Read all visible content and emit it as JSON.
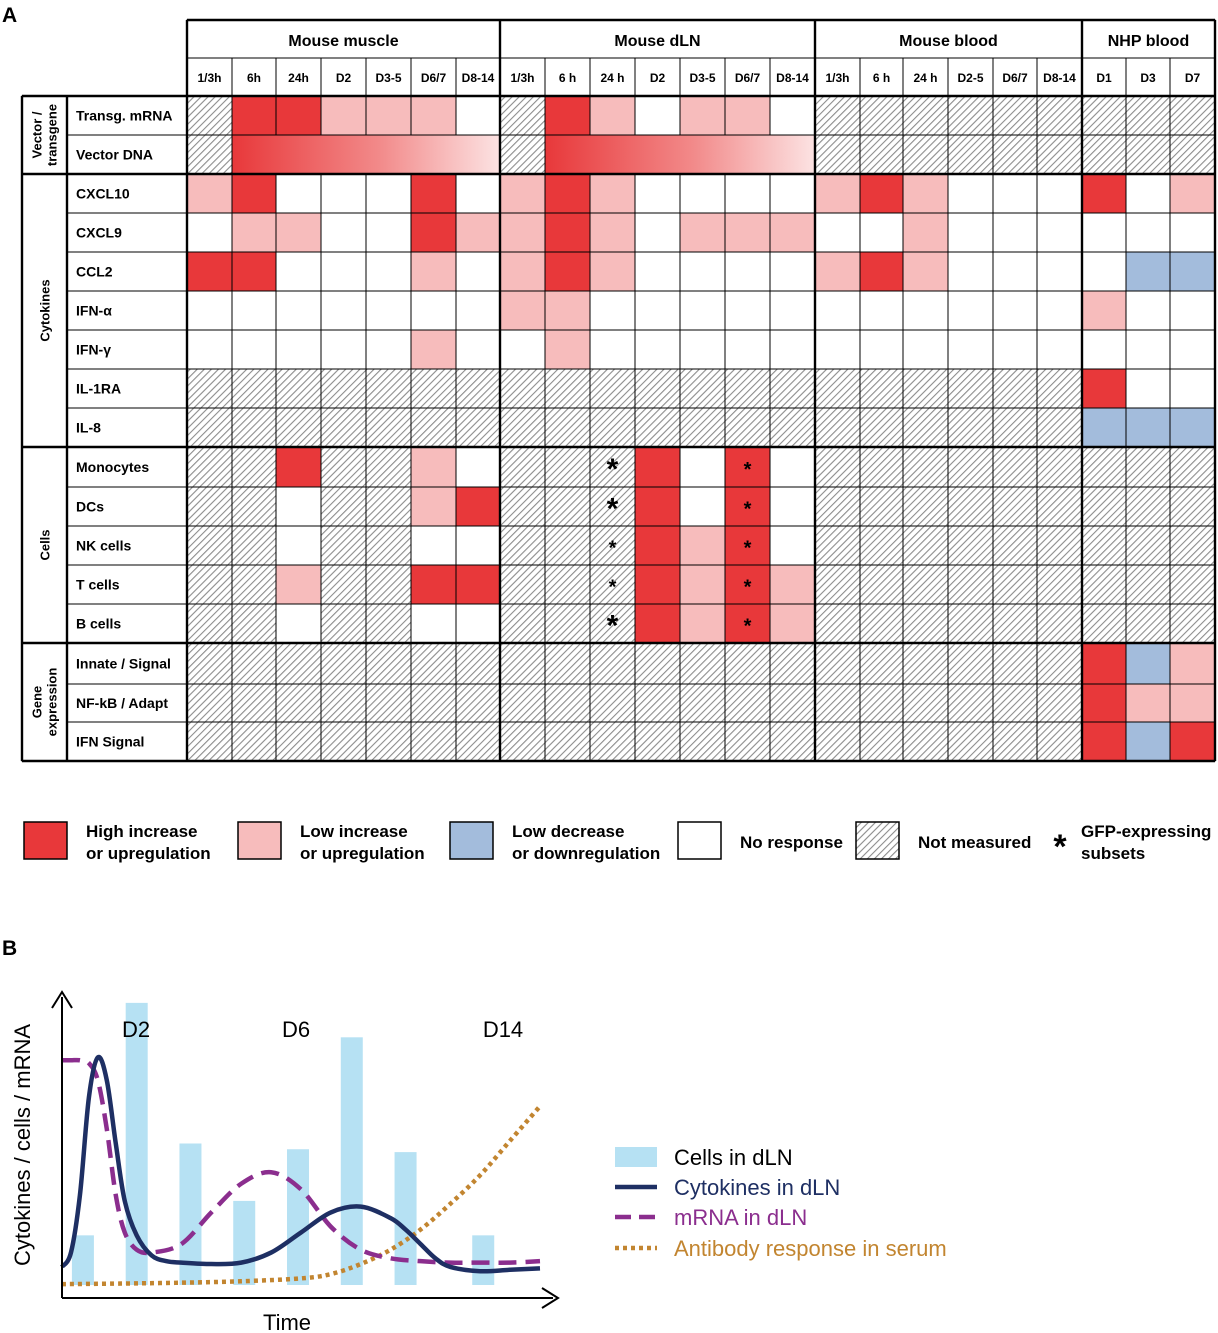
{
  "panel_a": {
    "label": "A",
    "groups": [
      {
        "name": "Mouse muscle",
        "cols": [
          "1/3h",
          "6h",
          "24h",
          "D2",
          "D3-5",
          "D6/7",
          "D8-14"
        ]
      },
      {
        "name": "Mouse dLN",
        "cols": [
          "1/3h",
          "6 h",
          "24 h",
          "D2",
          "D3-5",
          "D6/7",
          "D8-14"
        ]
      },
      {
        "name": "Mouse blood",
        "cols": [
          "1/3h",
          "6 h",
          "24 h",
          "D2-5",
          "D6/7",
          "D8-14"
        ]
      },
      {
        "name": "NHP blood",
        "cols": [
          "D1",
          "D3",
          "D7"
        ]
      }
    ],
    "sections": [
      {
        "name": [
          "Vector /",
          "transgene"
        ],
        "rows": [
          "Transg. mRNA",
          "Vector DNA"
        ]
      },
      {
        "name": [
          "Cytokines"
        ],
        "rows": [
          "CXCL10",
          "CXCL9",
          "CCL2",
          "IFN-α",
          "IFN-γ",
          "IL-1RA",
          "IL-8"
        ]
      },
      {
        "name": [
          "Cells"
        ],
        "rows": [
          "Monocytes",
          "DCs",
          "NK cells",
          "T cells",
          "B cells"
        ]
      },
      {
        "name": [
          "Gene",
          "expression"
        ],
        "rows": [
          "Innate / Signal",
          "NF-kB / Adapt",
          "IFN Signal"
        ]
      }
    ],
    "colors": {
      "H": "#e8383a",
      "L": "#f7bcbc",
      "D": "#a3bcdc",
      "N": "#ffffff"
    },
    "cells": [
      [
        "X",
        "H",
        "H",
        "L",
        "L",
        "L",
        "N",
        "X",
        "H",
        "L",
        "N",
        "L",
        "L",
        "N",
        "X",
        "X",
        "X",
        "X",
        "X",
        "X",
        "X",
        "X",
        "X"
      ],
      [
        "X",
        "G",
        "G",
        "G",
        "G",
        "G",
        "G",
        "X",
        "G",
        "G",
        "G",
        "G",
        "G",
        "G",
        "X",
        "X",
        "X",
        "X",
        "X",
        "X",
        "X",
        "X",
        "X"
      ],
      [
        "L",
        "H",
        "N",
        "N",
        "N",
        "H",
        "N",
        "L",
        "H",
        "L",
        "N",
        "N",
        "N",
        "N",
        "L",
        "H",
        "L",
        "N",
        "N",
        "N",
        "H",
        "N",
        "L"
      ],
      [
        "N",
        "L",
        "L",
        "N",
        "N",
        "H",
        "L",
        "L",
        "H",
        "L",
        "N",
        "L",
        "L",
        "L",
        "N",
        "N",
        "L",
        "N",
        "N",
        "N",
        "N",
        "N",
        "N"
      ],
      [
        "H",
        "H",
        "N",
        "N",
        "N",
        "L",
        "N",
        "L",
        "H",
        "L",
        "N",
        "N",
        "N",
        "N",
        "L",
        "H",
        "L",
        "N",
        "N",
        "N",
        "N",
        "D",
        "D"
      ],
      [
        "N",
        "N",
        "N",
        "N",
        "N",
        "N",
        "N",
        "L",
        "L",
        "N",
        "N",
        "N",
        "N",
        "N",
        "N",
        "N",
        "N",
        "N",
        "N",
        "N",
        "L",
        "N",
        "N"
      ],
      [
        "N",
        "N",
        "N",
        "N",
        "N",
        "L",
        "N",
        "N",
        "L",
        "N",
        "N",
        "N",
        "N",
        "N",
        "N",
        "N",
        "N",
        "N",
        "N",
        "N",
        "N",
        "N",
        "N"
      ],
      [
        "X",
        "X",
        "X",
        "X",
        "X",
        "X",
        "X",
        "X",
        "X",
        "X",
        "X",
        "X",
        "X",
        "X",
        "X",
        "X",
        "X",
        "X",
        "X",
        "X",
        "H",
        "N",
        "N"
      ],
      [
        "X",
        "X",
        "X",
        "X",
        "X",
        "X",
        "X",
        "X",
        "X",
        "X",
        "X",
        "X",
        "X",
        "X",
        "X",
        "X",
        "X",
        "X",
        "X",
        "X",
        "D",
        "D",
        "D"
      ],
      [
        "X",
        "X",
        "H",
        "X",
        "X",
        "L",
        "N",
        "X",
        "X",
        "X",
        "H",
        "N",
        "H",
        "N",
        "X",
        "X",
        "X",
        "X",
        "X",
        "X",
        "X",
        "X",
        "X"
      ],
      [
        "X",
        "X",
        "N",
        "X",
        "X",
        "L",
        "H",
        "X",
        "X",
        "X",
        "H",
        "N",
        "H",
        "N",
        "X",
        "X",
        "X",
        "X",
        "X",
        "X",
        "X",
        "X",
        "X"
      ],
      [
        "X",
        "X",
        "N",
        "X",
        "X",
        "N",
        "N",
        "X",
        "X",
        "X",
        "H",
        "L",
        "H",
        "N",
        "X",
        "X",
        "X",
        "X",
        "X",
        "X",
        "X",
        "X",
        "X"
      ],
      [
        "X",
        "X",
        "L",
        "X",
        "X",
        "H",
        "H",
        "X",
        "X",
        "X",
        "H",
        "L",
        "H",
        "L",
        "X",
        "X",
        "X",
        "X",
        "X",
        "X",
        "X",
        "X",
        "X"
      ],
      [
        "X",
        "X",
        "N",
        "X",
        "X",
        "N",
        "N",
        "X",
        "X",
        "X",
        "H",
        "L",
        "H",
        "L",
        "X",
        "X",
        "X",
        "X",
        "X",
        "X",
        "X",
        "X",
        "X"
      ],
      [
        "X",
        "X",
        "X",
        "X",
        "X",
        "X",
        "X",
        "X",
        "X",
        "X",
        "X",
        "X",
        "X",
        "X",
        "X",
        "X",
        "X",
        "X",
        "X",
        "X",
        "H",
        "D",
        "L"
      ],
      [
        "X",
        "X",
        "X",
        "X",
        "X",
        "X",
        "X",
        "X",
        "X",
        "X",
        "X",
        "X",
        "X",
        "X",
        "X",
        "X",
        "X",
        "X",
        "X",
        "X",
        "H",
        "L",
        "L"
      ],
      [
        "X",
        "X",
        "X",
        "X",
        "X",
        "X",
        "X",
        "X",
        "X",
        "X",
        "X",
        "X",
        "X",
        "X",
        "X",
        "X",
        "X",
        "X",
        "X",
        "X",
        "H",
        "D",
        "H"
      ]
    ],
    "asterisks": [
      {
        "row": 9,
        "col": 9,
        "size": "big"
      },
      {
        "row": 9,
        "col": 12,
        "size": "small"
      },
      {
        "row": 10,
        "col": 9,
        "size": "big"
      },
      {
        "row": 10,
        "col": 12,
        "size": "small"
      },
      {
        "row": 11,
        "col": 9,
        "size": "small"
      },
      {
        "row": 11,
        "col": 12,
        "size": "small"
      },
      {
        "row": 12,
        "col": 9,
        "size": "small"
      },
      {
        "row": 12,
        "col": 12,
        "size": "small"
      },
      {
        "row": 13,
        "col": 9,
        "size": "big"
      },
      {
        "row": 13,
        "col": 12,
        "size": "small"
      }
    ],
    "legend": [
      {
        "key": "H",
        "lines": [
          "High increase",
          "or upregulation"
        ]
      },
      {
        "key": "L",
        "lines": [
          "Low increase",
          "or upregulation"
        ]
      },
      {
        "key": "D",
        "lines": [
          "Low decrease",
          "or downregulation"
        ]
      },
      {
        "key": "N",
        "lines": [
          "No response"
        ]
      },
      {
        "key": "X",
        "lines": [
          "Not measured"
        ]
      },
      {
        "key": "*",
        "lines": [
          "GFP-expressing",
          "subsets"
        ]
      }
    ]
  },
  "panel_b": {
    "label": "B",
    "chart_data": {
      "type": "line",
      "xlabel": "Time",
      "ylabel": "Cytokines / cells / mRNA",
      "day_labels": [
        "D2",
        "D6",
        "D14"
      ],
      "xlim": [
        0,
        15
      ],
      "ylim": [
        0,
        10
      ],
      "bars": {
        "name": "Cells in dLN",
        "color": "#b6e1f3",
        "x": [
          0.7,
          2.5,
          4.3,
          6.1,
          7.9,
          9.7,
          11.5,
          14.1
        ],
        "values": [
          1.8,
          9.9,
          5.0,
          3.0,
          4.8,
          8.7,
          4.7,
          1.8
        ]
      },
      "series": [
        {
          "name": "Cytokines in dLN",
          "color": "#1e2f63",
          "style": "solid",
          "x": [
            0,
            0.3,
            0.6,
            0.9,
            1.2,
            1.5,
            1.8,
            2.1,
            2.5,
            3,
            3.5,
            4,
            5,
            6,
            7,
            8,
            9,
            10,
            11,
            11.5,
            12,
            12.5,
            13,
            14,
            15,
            16
          ],
          "y": [
            0.7,
            1.2,
            3.2,
            6.6,
            8.0,
            7.2,
            5.0,
            3.0,
            1.8,
            1.1,
            0.9,
            0.85,
            0.8,
            0.85,
            1.2,
            1.9,
            2.6,
            2.8,
            2.4,
            2.0,
            1.5,
            1.0,
            0.7,
            0.55,
            0.6,
            0.65
          ]
        },
        {
          "name": "mRNA in dLN",
          "color": "#8b2e8e",
          "style": "dashed",
          "x": [
            0,
            0.3,
            0.6,
            0.9,
            1.2,
            1.5,
            1.8,
            2.1,
            2.5,
            3,
            4,
            5,
            6,
            7,
            8,
            9,
            10,
            11,
            12,
            13,
            14,
            15,
            16
          ],
          "y": [
            7.9,
            7.9,
            7.9,
            7.8,
            7.2,
            5.5,
            3.2,
            1.9,
            1.3,
            1.2,
            1.5,
            2.6,
            3.6,
            4.0,
            3.4,
            2.1,
            1.3,
            1.0,
            0.9,
            0.85,
            0.85,
            0.85,
            0.9
          ]
        },
        {
          "name": "Antibody response in serum",
          "color": "#c28530",
          "style": "dotted",
          "x": [
            0,
            2,
            4,
            6,
            8,
            9,
            10,
            11,
            12,
            13,
            14,
            15,
            16
          ],
          "y": [
            0.1,
            0.12,
            0.15,
            0.2,
            0.3,
            0.45,
            0.8,
            1.3,
            2.0,
            2.9,
            3.9,
            5.1,
            6.3
          ]
        }
      ]
    }
  }
}
